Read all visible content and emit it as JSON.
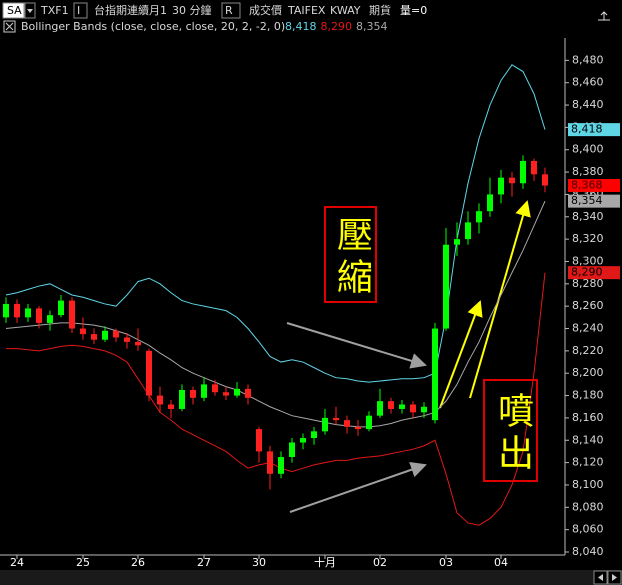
{
  "header": {
    "symbol_box": "SA",
    "symbol": "TXF1",
    "interval_box": "I",
    "name": "台指期連續月1",
    "interval": "30 分鐘",
    "price_box": "R",
    "price_field": "成交價",
    "exchange": "TAIFEX",
    "source": "KWAY",
    "market": "期貨",
    "volume": "量=0"
  },
  "chart_data": {
    "type": "candlestick",
    "categories": [
      null,
      "24",
      null,
      null,
      null,
      null,
      null,
      "25",
      null,
      null,
      null,
      null,
      "26",
      null,
      null,
      null,
      null,
      null,
      "27",
      null,
      null,
      null,
      null,
      "30",
      null,
      null,
      null,
      null,
      null,
      "十月",
      null,
      null,
      null,
      null,
      "02",
      null,
      null,
      null,
      null,
      null,
      "03",
      null,
      null,
      null,
      null,
      "04",
      null,
      null,
      null,
      null
    ],
    "candles": {
      "open": [
        8250,
        8262,
        8250,
        8258,
        8245,
        8252,
        8265,
        8240,
        8235,
        8230,
        8238,
        8232,
        8228,
        8220,
        8180,
        8172,
        8168,
        8185,
        8178,
        8190,
        8183,
        8180,
        8186,
        8150,
        8130,
        8110,
        8125,
        8138,
        8142,
        8148,
        8160,
        8158,
        8152,
        8150,
        8162,
        8175,
        8168,
        8172,
        8165,
        8158,
        8240,
        8315,
        8320,
        8335,
        8345,
        8360,
        8375,
        8370,
        8390,
        8378
      ],
      "high": [
        8268,
        8266,
        8262,
        8260,
        8256,
        8270,
        8268,
        8250,
        8240,
        8242,
        8240,
        8236,
        8240,
        8222,
        8188,
        8176,
        8190,
        8188,
        8196,
        8194,
        8188,
        8192,
        8190,
        8152,
        8135,
        8130,
        8142,
        8146,
        8152,
        8168,
        8170,
        8162,
        8158,
        8166,
        8186,
        8178,
        8176,
        8175,
        8174,
        8245,
        8330,
        8335,
        8345,
        8352,
        8375,
        8382,
        8380,
        8395,
        8392,
        8384
      ],
      "low": [
        8245,
        8245,
        8246,
        8240,
        8238,
        8250,
        8236,
        8230,
        8226,
        8228,
        8228,
        8222,
        8220,
        8175,
        8165,
        8160,
        8166,
        8172,
        8175,
        8180,
        8176,
        8178,
        8172,
        8120,
        8096,
        8106,
        8120,
        8132,
        8136,
        8145,
        8154,
        8146,
        8144,
        8148,
        8160,
        8164,
        8164,
        8160,
        8160,
        8155,
        8238,
        8305,
        8315,
        8325,
        8340,
        8352,
        8358,
        8365,
        8372,
        8362
      ],
      "close": [
        8262,
        8250,
        8258,
        8245,
        8252,
        8265,
        8240,
        8235,
        8230,
        8238,
        8232,
        8228,
        8225,
        8180,
        8172,
        8168,
        8185,
        8178,
        8190,
        8183,
        8180,
        8186,
        8178,
        8130,
        8110,
        8125,
        8138,
        8142,
        8148,
        8160,
        8158,
        8152,
        8150,
        8162,
        8175,
        8168,
        8172,
        8165,
        8170,
        8240,
        8315,
        8320,
        8335,
        8345,
        8360,
        8375,
        8370,
        8390,
        8378,
        8368
      ],
      "close_label": "8,368",
      "up_color": "#00ff00",
      "down_color": "#ff2020",
      "label_color": "#ff0000"
    },
    "indicator": {
      "label": "Bollinger Bands (close, close, close, 20, 2, -2, 0)",
      "series": [
        {
          "color": "#5fd6e6",
          "last_label": "8,418",
          "values": [
            8270,
            8272,
            8275,
            8278,
            8280,
            8275,
            8270,
            8268,
            8265,
            8262,
            8260,
            8270,
            8282,
            8285,
            8280,
            8272,
            8265,
            8262,
            8260,
            8258,
            8256,
            8250,
            8240,
            8228,
            8215,
            8210,
            8212,
            8210,
            8205,
            8200,
            8196,
            8195,
            8193,
            8192,
            8193,
            8194,
            8195,
            8195,
            8196,
            8200,
            8250,
            8320,
            8370,
            8410,
            8440,
            8462,
            8476,
            8470,
            8450,
            8418
          ]
        },
        {
          "color": "#e01818",
          "last_label": "8,290",
          "values": [
            8222,
            8222,
            8221,
            8220,
            8222,
            8224,
            8225,
            8224,
            8222,
            8220,
            8216,
            8210,
            8195,
            8180,
            8165,
            8158,
            8150,
            8145,
            8140,
            8135,
            8130,
            8122,
            8115,
            8118,
            8120,
            8115,
            8112,
            8115,
            8118,
            8120,
            8122,
            8122,
            8124,
            8125,
            8126,
            8128,
            8130,
            8132,
            8135,
            8140,
            8110,
            8075,
            8066,
            8064,
            8070,
            8080,
            8100,
            8130,
            8200,
            8290
          ]
        },
        {
          "color": "#a8a8a8",
          "last_label": "8,354",
          "values": [
            8240,
            8241,
            8242,
            8243,
            8244,
            8245,
            8245,
            8244,
            8243,
            8241,
            8238,
            8235,
            8230,
            8225,
            8218,
            8212,
            8205,
            8200,
            8196,
            8192,
            8188,
            8185,
            8180,
            8175,
            8170,
            8166,
            8162,
            8160,
            8158,
            8156,
            8154,
            8153,
            8152,
            8152,
            8153,
            8155,
            8158,
            8160,
            8162,
            8165,
            8175,
            8190,
            8210,
            8228,
            8250,
            8270,
            8290,
            8310,
            8332,
            8354
          ]
        }
      ]
    },
    "ylim": [
      8040,
      8500
    ],
    "yticks": [
      {
        "value": 8040,
        "label": "8,040"
      },
      {
        "value": 8060,
        "label": "8,060"
      },
      {
        "value": 8080,
        "label": "8,080"
      },
      {
        "value": 8100,
        "label": "8,100"
      },
      {
        "value": 8120,
        "label": "8,120"
      },
      {
        "value": 8140,
        "label": "8,140"
      },
      {
        "value": 8160,
        "label": "8,160"
      },
      {
        "value": 8180,
        "label": "8,180"
      },
      {
        "value": 8200,
        "label": "8,200"
      },
      {
        "value": 8220,
        "label": "8,220"
      },
      {
        "value": 8240,
        "label": "8,240"
      },
      {
        "value": 8260,
        "label": "8,260"
      },
      {
        "value": 8280,
        "label": "8,280"
      },
      {
        "value": 8300,
        "label": "8,300"
      },
      {
        "value": 8320,
        "label": "8,320"
      },
      {
        "value": 8340,
        "label": "8,340"
      },
      {
        "value": 8360,
        "label": "8,360"
      },
      {
        "value": 8380,
        "label": "8,380"
      },
      {
        "value": 8400,
        "label": "8,400"
      },
      {
        "value": 8420,
        "label": "8,420"
      },
      {
        "value": 8440,
        "label": "8,440"
      },
      {
        "value": 8460,
        "label": "8,460"
      },
      {
        "value": 8480,
        "label": "8,480"
      }
    ],
    "annotations": [
      {
        "text": "壓縮"
      },
      {
        "text": "噴出"
      }
    ]
  }
}
